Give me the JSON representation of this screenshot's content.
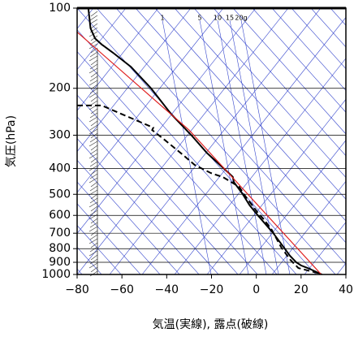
{
  "chart_data": {
    "type": "skewt",
    "xlabel": "気温(実線), 露点(破線)",
    "ylabel": "気圧(hPa)",
    "xlim": [
      -80,
      40
    ],
    "xticks": [
      {
        "value": -80,
        "label": "−80"
      },
      {
        "value": -60,
        "label": "−60"
      },
      {
        "value": -40,
        "label": "−40"
      },
      {
        "value": -20,
        "label": "−20"
      },
      0,
      20,
      40
    ],
    "ylim": [
      1000,
      100
    ],
    "yscale": "log",
    "yticks": [
      100,
      200,
      300,
      400,
      500,
      600,
      700,
      800,
      900,
      1000
    ],
    "grid": true,
    "mixing_ratio_labels": [
      "1",
      "5",
      "10",
      "15",
      "20g"
    ],
    "series": [
      {
        "color": "#000000",
        "style": "solid",
        "x": [
          -75,
          -74,
          -72,
          -69,
          -64,
          -56,
          -47,
          -38,
          -29,
          -22,
          -14.5,
          -10.5,
          -10,
          -6,
          -3,
          0.7,
          7.6,
          12.7,
          15,
          17.8,
          20,
          23.5,
          29.3
        ],
        "y": [
          100,
          119,
          130,
          137,
          147,
          166,
          200,
          250,
          300,
          350,
          400,
          430,
          450,
          500,
          550,
          600,
          700,
          800,
          850,
          900,
          925,
          950,
          1000
        ]
      },
      {
        "color": "#000000",
        "style": "dashed",
        "x": [
          -80,
          -69,
          -46,
          -46.5,
          -42,
          -33,
          -27.5,
          -20.3,
          -14.9,
          -7.6,
          -5.8,
          -4,
          0.7,
          3.3,
          6.9,
          11.2,
          15.2,
          18.8,
          28.6
        ],
        "y": [
          232,
          232,
          281,
          287,
          307,
          354,
          388,
          416,
          431,
          469,
          496,
          520,
          587,
          620,
          680,
          793,
          881,
          946,
          993
        ]
      },
      {
        "color": "#e02020",
        "style": "solid",
        "x": [
          -80,
          -30,
          29
        ],
        "y": [
          123,
          287,
          1000
        ]
      }
    ]
  }
}
